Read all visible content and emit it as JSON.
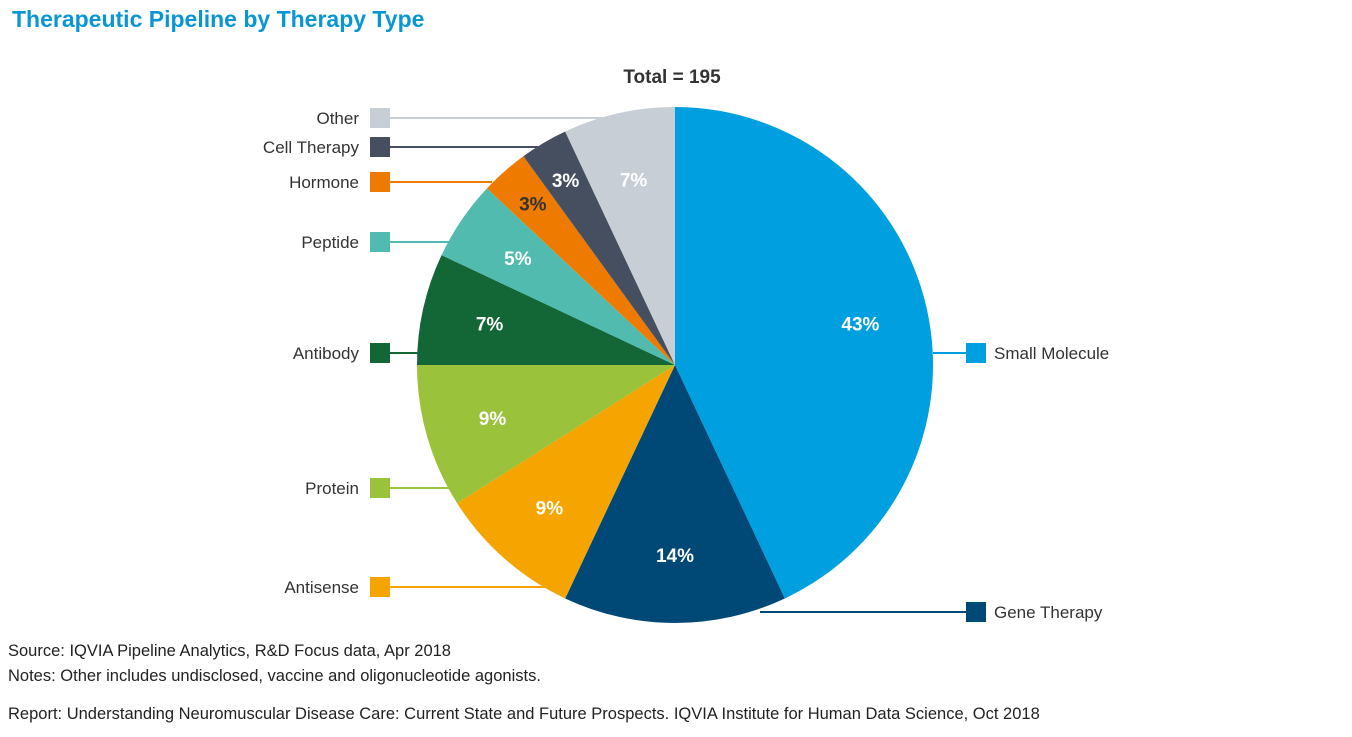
{
  "title": "Therapeutic Pipeline by Therapy Type",
  "chart_data": {
    "type": "pie",
    "title": "Therapeutic Pipeline by Therapy Type",
    "subtitle": "Total = 195",
    "start": "12 o'clock, clockwise",
    "slices": [
      {
        "name": "Small Molecule",
        "value": 43,
        "label": "43%",
        "color": "#009fe0",
        "label_color": "#ffffff"
      },
      {
        "name": "Gene Therapy",
        "value": 14,
        "label": "14%",
        "color": "#004876",
        "label_color": "#ffffff"
      },
      {
        "name": "Antisense",
        "value": 9,
        "label": "9%",
        "color": "#f5a400",
        "label_color": "#ffffff"
      },
      {
        "name": "Protein",
        "value": 9,
        "label": "9%",
        "color": "#9ac33b",
        "label_color": "#ffffff"
      },
      {
        "name": "Antibody",
        "value": 7,
        "label": "7%",
        "color": "#136636",
        "label_color": "#ffffff"
      },
      {
        "name": "Peptide",
        "value": 5,
        "label": "5%",
        "color": "#51bbb0",
        "label_color": "#ffffff"
      },
      {
        "name": "Hormone",
        "value": 3,
        "label": "3%",
        "color": "#ee7b00",
        "label_color": "#333333"
      },
      {
        "name": "Cell Therapy",
        "value": 3,
        "label": "3%",
        "color": "#454f60",
        "label_color": "#ffffff"
      },
      {
        "name": "Other",
        "value": 7,
        "label": "7%",
        "color": "#c8ced6",
        "label_color": "#ffffff"
      }
    ]
  },
  "footer": {
    "source": "Source: IQVIA Pipeline Analytics, R&D Focus data, Apr 2018",
    "notes": "Notes: Other includes undisclosed, vaccine and oligonucleotide agonists.",
    "report": "Report: Understanding Neuromuscular Disease Care: Current State and Future Prospects. IQVIA Institute for Human Data Science, Oct 2018"
  }
}
